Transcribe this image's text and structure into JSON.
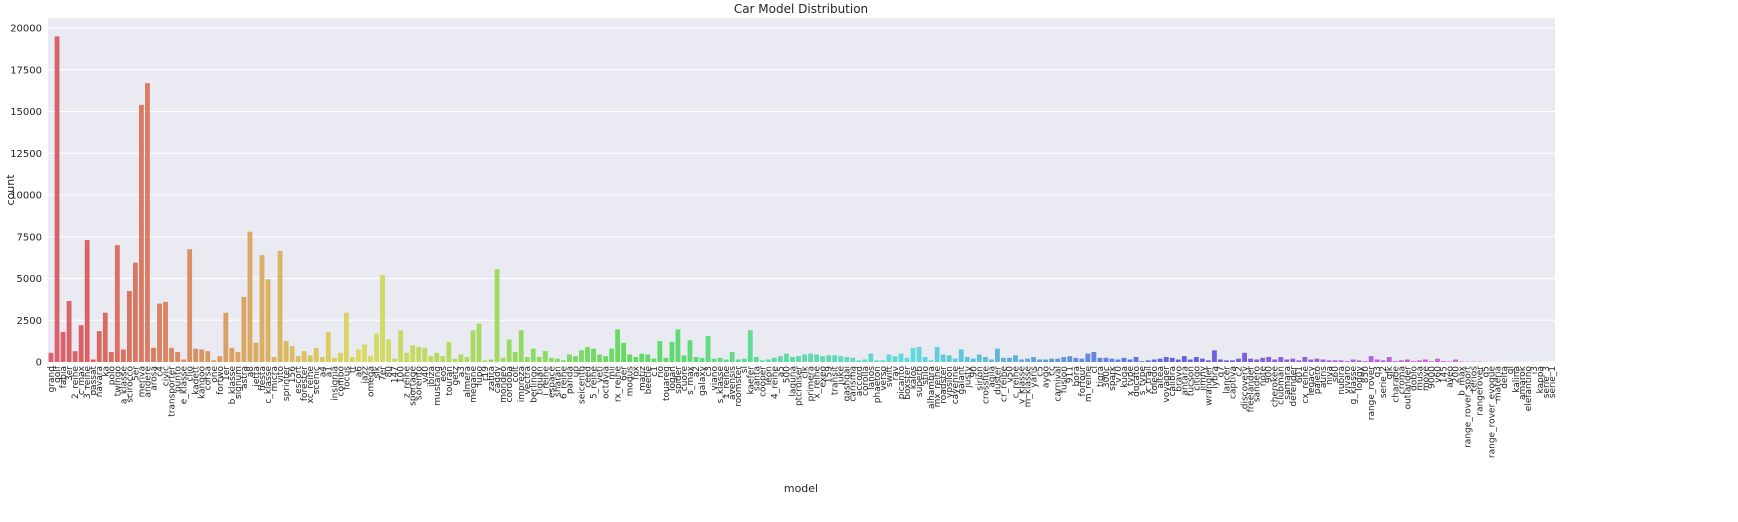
{
  "chart_data": {
    "type": "bar",
    "title": "Car Model Distribution",
    "x_label": "model",
    "y_label": "count",
    "palette": "husl",
    "grid": true,
    "categories": [
      "grand",
      "golf",
      "fabia",
      "3er",
      "2_reihe",
      "c_max",
      "3_reihe",
      "passat",
      "navara",
      "ka",
      "polo",
      "twingo",
      "a_klasse",
      "scirocco",
      "5er",
      "meriva",
      "andere",
      "arosa",
      "c4",
      "civic",
      "transporter",
      "punto",
      "e_klasse",
      "clio",
      "kadett",
      "kangoo",
      "corsa",
      "one",
      "fortwo",
      "1er",
      "b_klasse",
      "signum",
      "astra",
      "a8",
      "jetta",
      "fiesta",
      "c_klasse",
      "micra",
      "vito",
      "sprinter",
      "156",
      "escort",
      "forester",
      "xc_reihe",
      "scenic",
      "a4",
      "a1",
      "insignia",
      "combo",
      "focus",
      "tt",
      "a6",
      "jazz",
      "omega",
      "slk",
      "7er",
      "80",
      "147",
      "100",
      "z_reihe",
      "sportage",
      "sorento",
      "v40",
      "ibiza",
      "mustang",
      "eos",
      "touran",
      "getz",
      "a3",
      "almera",
      "megane",
      "lupo",
      "r19",
      "zafira",
      "caddy",
      "mondeo",
      "cordoba",
      "colt",
      "impreza",
      "vectra",
      "berlingo",
      "tiguan",
      "i_reihe",
      "espace",
      "sharan",
      "6_reihe",
      "panda",
      "up",
      "seicento",
      "ceed",
      "5_reihe",
      "yeti",
      "octavia",
      "mii",
      "rx_reihe",
      "6er",
      "modus",
      "fox",
      "matiz",
      "beetle",
      "c1",
      "rio",
      "touareg",
      "logan",
      "spider",
      "cuore",
      "s_max",
      "a2",
      "galaxy",
      "c3",
      "viano",
      "s_klasse",
      "1_reihe",
      "avensis",
      "roomster",
      "sl",
      "kaefer",
      "santa",
      "cooper",
      "leon",
      "4_reihe",
      "a5",
      "500",
      "laguna",
      "ptcruiser",
      "clk",
      "primera",
      "x_reihe",
      "exeo",
      "159",
      "transit",
      "juke",
      "qashqai",
      "carisma",
      "accord",
      "corolla",
      "lanos",
      "phaeton",
      "verso",
      "swift",
      "rav",
      "picanto",
      "boxster",
      "kalos",
      "superb",
      "stilo",
      "alhambra",
      "mx_reihe",
      "roadster",
      "ypsilon",
      "cayenne",
      "galant",
      "justy",
      "90",
      "sirion",
      "crossfire",
      "agila",
      "duster",
      "cr_reihe",
      "v50",
      "c_reihe",
      "v_klasse",
      "m_klasse",
      "yaris",
      "c5",
      "aygo",
      "cc",
      "carnival",
      "fusion",
      "911",
      "bora",
      "forfour",
      "m_reihe",
      "cl",
      "tigra",
      "300c",
      "spark",
      "v70",
      "kuga",
      "x_type",
      "ducato",
      "s_type",
      "x_trail",
      "toledo",
      "altea",
      "voyager",
      "calibra",
      "bravo",
      "antara",
      "tucson",
      "citigo",
      "jimny",
      "wrangler",
      "lybra",
      "q7",
      "lancer",
      "captiva",
      "c2",
      "discovery",
      "freelander",
      "sandero",
      "note",
      "900",
      "cherokee",
      "clubman",
      "samara",
      "defender",
      "601",
      "cx_reihe",
      "legacy",
      "pajero",
      "auris",
      "niva",
      "s60",
      "nubira",
      "vivaro",
      "g_klasse",
      "lodgy",
      "850",
      "range_rover",
      "q3",
      "serie_2",
      "glk",
      "charade",
      "croma",
      "outlander",
      "doblo",
      "musa",
      "move",
      "9000",
      "v60",
      "145",
      "aveo",
      "200",
      "b_max",
      "range_rover_sport",
      "terios",
      "rangerover",
      "q5",
      "range_rover_evoque",
      "materia",
      "delta",
      "gl",
      "kalina",
      "amarok",
      "elefantino",
      "i3",
      "kappa",
      "serie_3",
      "serie_1"
    ],
    "values": [
      550,
      19500,
      1800,
      3650,
      650,
      2200,
      7300,
      150,
      1850,
      2950,
      600,
      7000,
      750,
      4250,
      5950,
      15400,
      16700,
      850,
      3500,
      3600,
      850,
      600,
      150,
      6750,
      800,
      750,
      650,
      100,
      350,
      2950,
      850,
      600,
      3900,
      7800,
      1150,
      6400,
      4950,
      300,
      6650,
      1250,
      950,
      350,
      650,
      400,
      850,
      300,
      1800,
      250,
      550,
      2950,
      300,
      750,
      1050,
      350,
      1700,
      5200,
      1350,
      200,
      1900,
      550,
      1000,
      900,
      850,
      350,
      550,
      350,
      1200,
      200,
      450,
      300,
      1900,
      2300,
      100,
      150,
      5550,
      250,
      1350,
      600,
      1900,
      300,
      800,
      300,
      650,
      250,
      200,
      100,
      450,
      350,
      700,
      900,
      800,
      450,
      350,
      800,
      1950,
      1150,
      450,
      300,
      500,
      450,
      200,
      1250,
      250,
      1200,
      1950,
      400,
      1300,
      300,
      250,
      1550,
      200,
      250,
      150,
      600,
      150,
      200,
      1900,
      300,
      100,
      150,
      250,
      350,
      500,
      300,
      350,
      450,
      500,
      450,
      350,
      400,
      400,
      350,
      300,
      250,
      100,
      150,
      500,
      100,
      100,
      450,
      350,
      500,
      250,
      850,
      900,
      300,
      100,
      900,
      450,
      400,
      200,
      750,
      300,
      200,
      450,
      300,
      150,
      800,
      250,
      250,
      400,
      150,
      200,
      300,
      150,
      150,
      200,
      200,
      300,
      350,
      250,
      200,
      500,
      600,
      250,
      250,
      200,
      150,
      250,
      150,
      300,
      50,
      100,
      150,
      200,
      300,
      250,
      150,
      350,
      150,
      300,
      200,
      100,
      700,
      150,
      100,
      100,
      200,
      550,
      200,
      150,
      250,
      300,
      150,
      300,
      150,
      200,
      100,
      300,
      150,
      200,
      150,
      100,
      100,
      100,
      50,
      150,
      100,
      50,
      350,
      150,
      100,
      300,
      50,
      100,
      150,
      50,
      100,
      150,
      50,
      200,
      50,
      30,
      150,
      30,
      20,
      20,
      20,
      10,
      10,
      10,
      5,
      5,
      5,
      5,
      5,
      3,
      2,
      2,
      1
    ],
    "ylim": [
      0,
      20600
    ],
    "yticks": [
      0,
      2500,
      5000,
      7500,
      10000,
      12500,
      15000,
      17500,
      20000
    ]
  }
}
